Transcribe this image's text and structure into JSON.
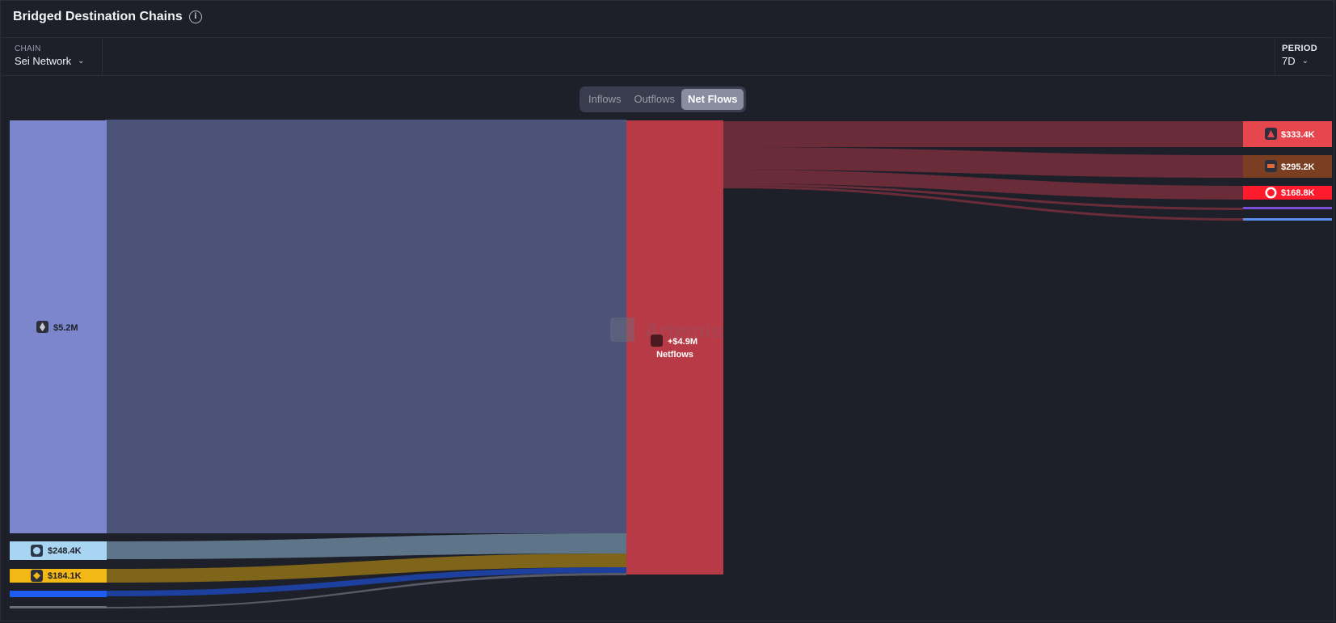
{
  "header": {
    "title": "Bridged Destination Chains",
    "info_icon": "info-icon"
  },
  "filters": {
    "chain": {
      "label": "CHAIN",
      "value": "Sei Network"
    },
    "period": {
      "label": "PERIOD",
      "value": "7D"
    }
  },
  "toggle": {
    "options": [
      "Inflows",
      "Outflows",
      "Net Flows"
    ],
    "active": "Net Flows"
  },
  "watermark": "Artemis",
  "chart_data": {
    "type": "sankey",
    "sources": [
      {
        "value_label": "$5.2M",
        "icon": "ethereum-icon",
        "color": "#7b86cc"
      },
      {
        "value_label": "$248.4K",
        "icon": "arbitrum-icon",
        "color": "#a8d6f2"
      },
      {
        "value_label": "$184.1K",
        "icon": "bnb-icon",
        "color": "#f3b716"
      },
      {
        "value_label": "",
        "icon": "",
        "color": "#1f5bf2"
      },
      {
        "value_label": "",
        "icon": "",
        "color": "#6c6e7a"
      }
    ],
    "center": {
      "value_label": "+$4.9M",
      "label": "Netflows",
      "icon": "sei-icon",
      "color": "#b83a46"
    },
    "targets": [
      {
        "value_label": "$333.4K",
        "icon": "avalanche-icon",
        "color": "#e6474f"
      },
      {
        "value_label": "$295.2K",
        "icon": "chain-icon",
        "color": "#7a3e22"
      },
      {
        "value_label": "$168.8K",
        "icon": "optimism-icon",
        "color": "#ff1b2b"
      },
      {
        "value_label": "",
        "icon": "",
        "color": "#7b4ed8"
      },
      {
        "value_label": "",
        "icon": "",
        "color": "#5b8ff0"
      }
    ]
  }
}
